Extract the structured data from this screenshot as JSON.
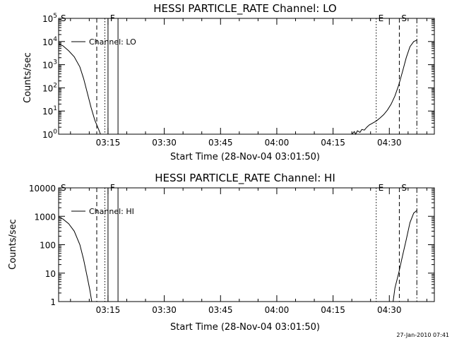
{
  "chart_data": [
    {
      "type": "line",
      "title": "HESSI PARTICLE_RATE Channel: LO",
      "xlabel": "Start Time (28-Nov-04 03:01:50)",
      "ylabel": "Counts/sec",
      "yscale": "log",
      "ylim": [
        1,
        100000
      ],
      "xlim": [
        "03:01:50",
        "04:42:00"
      ],
      "yticks": [
        {
          "value": 1,
          "base": "10",
          "exp": "0"
        },
        {
          "value": 10,
          "base": "10",
          "exp": "1"
        },
        {
          "value": 100,
          "base": "10",
          "exp": "2"
        },
        {
          "value": 1000,
          "base": "10",
          "exp": "3"
        },
        {
          "value": 10000,
          "base": "10",
          "exp": "4"
        },
        {
          "value": 100000,
          "base": "10",
          "exp": "5"
        }
      ],
      "xticks": [
        {
          "time": "03:15",
          "label": "03:15"
        },
        {
          "time": "03:30",
          "label": "03:30"
        },
        {
          "time": "03:45",
          "label": "03:45"
        },
        {
          "time": "04:00",
          "label": "04:00"
        },
        {
          "time": "04:15",
          "label": "04:15"
        },
        {
          "time": "04:30",
          "label": "04:30"
        }
      ],
      "legend": {
        "entry": "Channel: LO",
        "position": "top-left"
      },
      "markers": [
        {
          "time": "03:01:50",
          "label": "S",
          "style": "solid"
        },
        {
          "time": "03:12:00",
          "label": "",
          "style": "dashed"
        },
        {
          "time": "03:14:10",
          "label": "",
          "style": "dotted"
        },
        {
          "time": "03:15:00",
          "label": "F",
          "style": "solid"
        },
        {
          "time": "03:17:40",
          "label": "",
          "style": "solid"
        },
        {
          "time": "04:26:30",
          "label": "E",
          "style": "dotted"
        },
        {
          "time": "04:32:40",
          "label": "S",
          "style": "dashed"
        },
        {
          "time": "04:37:20",
          "label": "",
          "style": "dashdot"
        }
      ],
      "series": [
        {
          "name": "Channel: LO",
          "segments": [
            [
              [
                "03:01:50",
                8000
              ],
              [
                "03:03:00",
                6500
              ],
              [
                "03:04:30",
                4000
              ],
              [
                "03:06:00",
                2200
              ],
              [
                "03:07:30",
                800
              ],
              [
                "03:08:30",
                250
              ],
              [
                "03:09:30",
                60
              ],
              [
                "03:10:30",
                14
              ],
              [
                "03:11:30",
                4
              ],
              [
                "03:12:30",
                1.6
              ],
              [
                "03:13:00",
                1
              ]
            ],
            [
              [
                "04:20:00",
                1
              ],
              [
                "04:20:40",
                1.3
              ],
              [
                "04:21:00",
                1
              ],
              [
                "04:21:30",
                1.4
              ],
              [
                "04:22:10",
                1.2
              ],
              [
                "04:22:40",
                1.6
              ],
              [
                "04:23:20",
                1.5
              ],
              [
                "04:24:00",
                2
              ],
              [
                "04:24:40",
                2.5
              ],
              [
                "04:25:30",
                3
              ],
              [
                "04:26:30",
                3.7
              ],
              [
                "04:27:30",
                5
              ],
              [
                "04:28:30",
                7
              ],
              [
                "04:29:30",
                11
              ],
              [
                "04:30:30",
                20
              ],
              [
                "04:31:30",
                45
              ],
              [
                "04:32:30",
                130
              ],
              [
                "04:33:30",
                500
              ],
              [
                "04:34:30",
                2000
              ],
              [
                "04:35:30",
                6000
              ],
              [
                "04:36:30",
                10000
              ],
              [
                "04:37:20",
                11500
              ]
            ]
          ]
        }
      ]
    },
    {
      "type": "line",
      "title": "HESSI PARTICLE_RATE Channel: HI",
      "xlabel": "Start Time (28-Nov-04 03:01:50)",
      "ylabel": "Counts/sec",
      "yscale": "log",
      "ylim": [
        1,
        10000
      ],
      "xlim": [
        "03:01:50",
        "04:42:00"
      ],
      "yticks": [
        {
          "value": 1,
          "label": "1"
        },
        {
          "value": 10,
          "label": "10"
        },
        {
          "value": 100,
          "label": "100"
        },
        {
          "value": 1000,
          "label": "1000"
        },
        {
          "value": 10000,
          "label": "10000"
        }
      ],
      "xticks": [
        {
          "time": "03:15",
          "label": "03:15"
        },
        {
          "time": "03:30",
          "label": "03:30"
        },
        {
          "time": "03:45",
          "label": "03:45"
        },
        {
          "time": "04:00",
          "label": "04:00"
        },
        {
          "time": "04:15",
          "label": "04:15"
        },
        {
          "time": "04:30",
          "label": "04:30"
        }
      ],
      "legend": {
        "entry": "Channel: HI",
        "position": "top-left"
      },
      "markers": [
        {
          "time": "03:01:50",
          "label": "S",
          "style": "solid"
        },
        {
          "time": "03:12:00",
          "label": "",
          "style": "dashed"
        },
        {
          "time": "03:14:10",
          "label": "",
          "style": "dotted"
        },
        {
          "time": "03:15:00",
          "label": "F",
          "style": "solid"
        },
        {
          "time": "03:17:40",
          "label": "",
          "style": "solid"
        },
        {
          "time": "04:26:30",
          "label": "E",
          "style": "dotted"
        },
        {
          "time": "04:32:40",
          "label": "S",
          "style": "dashed"
        },
        {
          "time": "04:37:20",
          "label": "",
          "style": "dashdot"
        }
      ],
      "series": [
        {
          "name": "Channel: HI",
          "segments": [
            [
              [
                "03:01:50",
                950
              ],
              [
                "03:03:00",
                800
              ],
              [
                "03:04:30",
                550
              ],
              [
                "03:06:00",
                300
              ],
              [
                "03:07:30",
                100
              ],
              [
                "03:08:30",
                30
              ],
              [
                "03:09:30",
                7
              ],
              [
                "03:10:10",
                2.5
              ],
              [
                "03:10:40",
                1
              ]
            ],
            [
              [
                "04:31:00",
                1
              ],
              [
                "04:31:30",
                3
              ],
              [
                "04:32:30",
                10
              ],
              [
                "04:33:30",
                40
              ],
              [
                "04:34:30",
                150
              ],
              [
                "04:35:30",
                600
              ],
              [
                "04:36:30",
                1300
              ],
              [
                "04:37:20",
                1600
              ]
            ]
          ]
        }
      ]
    }
  ],
  "footer": {
    "timestamp": "27-Jan-2010 07:41"
  }
}
